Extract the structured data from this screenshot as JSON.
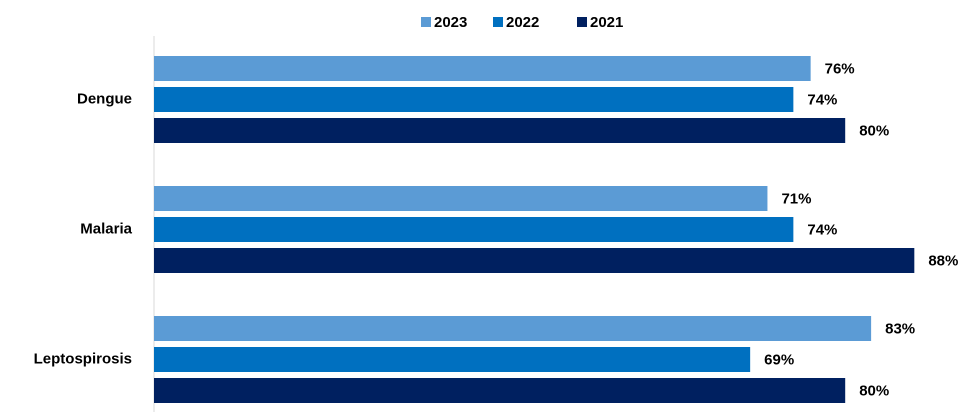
{
  "chart_data": {
    "type": "hbar",
    "categories": [
      "Dengue",
      "Malaria",
      "Leptospirosis"
    ],
    "series": [
      {
        "name": "2023",
        "color": "#5b9bd5",
        "values": [
          76,
          71,
          83
        ],
        "value_labels": [
          "76%",
          "71%",
          "83%"
        ]
      },
      {
        "name": "2022",
        "color": "#0070c0",
        "values": [
          74,
          74,
          69
        ],
        "value_labels": [
          "74%",
          "74%",
          "69%"
        ]
      },
      {
        "name": "2021",
        "color": "#002060",
        "values": [
          80,
          88,
          80
        ],
        "value_labels": [
          "80%",
          "88%",
          "80%"
        ]
      }
    ],
    "legend": "top"
  }
}
